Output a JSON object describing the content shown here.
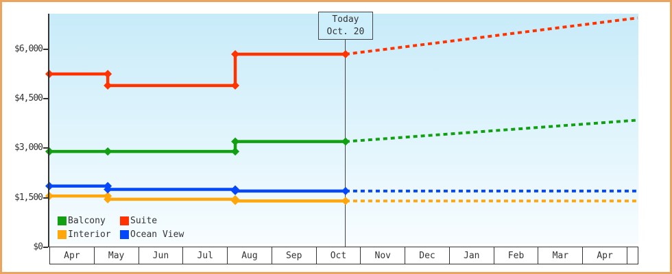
{
  "chart_data": {
    "type": "line",
    "description": "Cruise cabin price history (solid step lines) and forecast (dashed) by cabin type",
    "grid": false,
    "y_axis": {
      "ticks": [
        {
          "value": 0,
          "label": "$0"
        },
        {
          "value": 1500,
          "label": "$1,500"
        },
        {
          "value": 3000,
          "label": "$3,000"
        },
        {
          "value": 4500,
          "label": "$4,500"
        },
        {
          "value": 6000,
          "label": "$6,000"
        }
      ]
    },
    "x_axis": {
      "months": [
        "Apr",
        "May",
        "Jun",
        "Jul",
        "Aug",
        "Sep",
        "Oct",
        "Nov",
        "Dec",
        "Jan",
        "Feb",
        "Mar",
        "Apr"
      ]
    },
    "today": {
      "label_title": "Today",
      "label_date": "Oct. 20",
      "month_position": 6.645
    },
    "forecast_end_month_position": 13.2,
    "series": [
      {
        "name": "Balcony",
        "color": "#11a011",
        "steps": [
          {
            "month_position": 0,
            "value": 2900
          },
          {
            "month_position": 1.31,
            "value": 2900
          },
          {
            "month_position": 4.17,
            "value": 3200
          }
        ],
        "forecast_value": 3850
      },
      {
        "name": "Suite",
        "color": "#ff3300",
        "steps": [
          {
            "month_position": 0,
            "value": 5250
          },
          {
            "month_position": 1.31,
            "value": 4900
          },
          {
            "month_position": 4.17,
            "value": 5850
          }
        ],
        "forecast_value": 6950
      },
      {
        "name": "Interior",
        "color": "#ffa60a",
        "steps": [
          {
            "month_position": 0,
            "value": 1550
          },
          {
            "month_position": 1.31,
            "value": 1450
          },
          {
            "month_position": 4.17,
            "value": 1400
          }
        ],
        "forecast_value": 1400
      },
      {
        "name": "Ocean View",
        "color": "#0448fa",
        "steps": [
          {
            "month_position": 0,
            "value": 1850
          },
          {
            "month_position": 1.31,
            "value": 1750
          },
          {
            "month_position": 4.17,
            "value": 1700
          }
        ],
        "forecast_value": 1700
      }
    ]
  }
}
